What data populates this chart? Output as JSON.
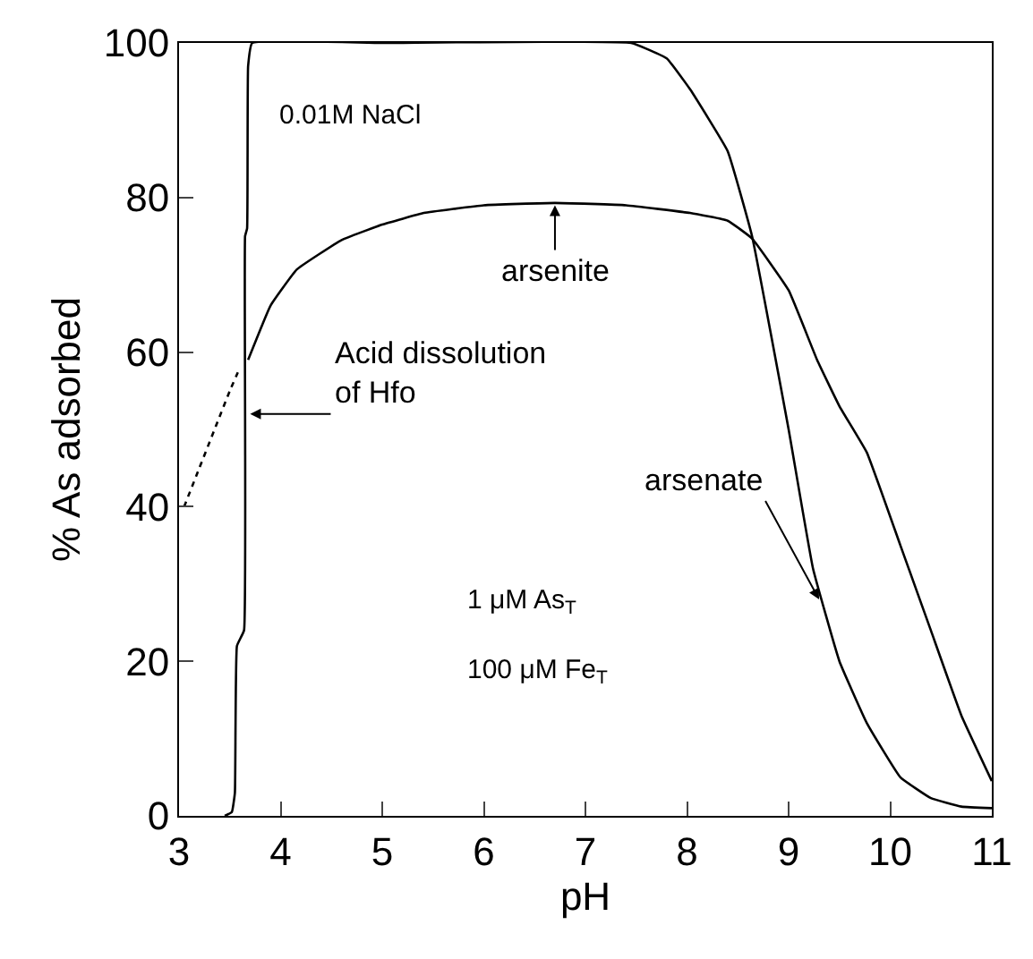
{
  "chart_data": {
    "type": "line",
    "xlabel": "pH",
    "ylabel": "% As adsorbed",
    "xlim": [
      3,
      11
    ],
    "ylim": [
      0,
      100
    ],
    "xticks": [
      3,
      4,
      5,
      6,
      7,
      8,
      9,
      10,
      11
    ],
    "yticks": [
      0,
      20,
      40,
      60,
      80,
      100
    ],
    "marker": "none",
    "series": [
      {
        "color": "#000000",
        "line_style": "solid",
        "x": [
          3.45,
          3.52,
          3.55,
          3.57,
          3.64,
          3.65,
          3.67,
          3.68,
          3.72,
          5,
          7.45,
          7.8,
          8.03,
          8.4,
          8.64,
          9.0,
          9.24,
          9.5,
          9.77,
          10.1,
          10.4,
          10.7,
          11
        ],
        "values": [
          0,
          0.5,
          3,
          22,
          24,
          75,
          76,
          97,
          100,
          100,
          100,
          98,
          94,
          86,
          75,
          50,
          32,
          20,
          12,
          5,
          2.3,
          1.2,
          1
        ]
      },
      {
        "color": "#000000",
        "line_style": "dotted",
        "x": [
          3.05,
          3.2,
          3.35,
          3.5,
          3.6
        ],
        "values": [
          40,
          45,
          50,
          55,
          58
        ]
      },
      {
        "color": "#000000",
        "line_style": "solid",
        "x": [
          3.68,
          3.9,
          4.16,
          4.6,
          5.0,
          5.41,
          6.0,
          6.7,
          7.4,
          8.03,
          8.4,
          8.64,
          9.0,
          9.28,
          9.5,
          9.77,
          10.1,
          10.4,
          10.7,
          11
        ],
        "values": [
          59,
          66,
          70.7,
          74.5,
          76.5,
          78,
          79,
          79.3,
          79,
          78,
          77,
          74.7,
          68,
          59,
          53,
          47,
          35,
          24,
          13,
          4.5
        ]
      }
    ],
    "annotations": [
      "0.01M NaCl",
      {
        "text": "arsenite",
        "x": 6.7,
        "y": 79
      },
      {
        "text": "Acid dissolution\nof Hfo",
        "x": 3.7,
        "y": 52
      },
      {
        "text": "arsenate",
        "x": 9.3,
        "y": 28
      },
      "1 μM As$_{T}$",
      "100 μM Fe$_{T}$"
    ]
  }
}
